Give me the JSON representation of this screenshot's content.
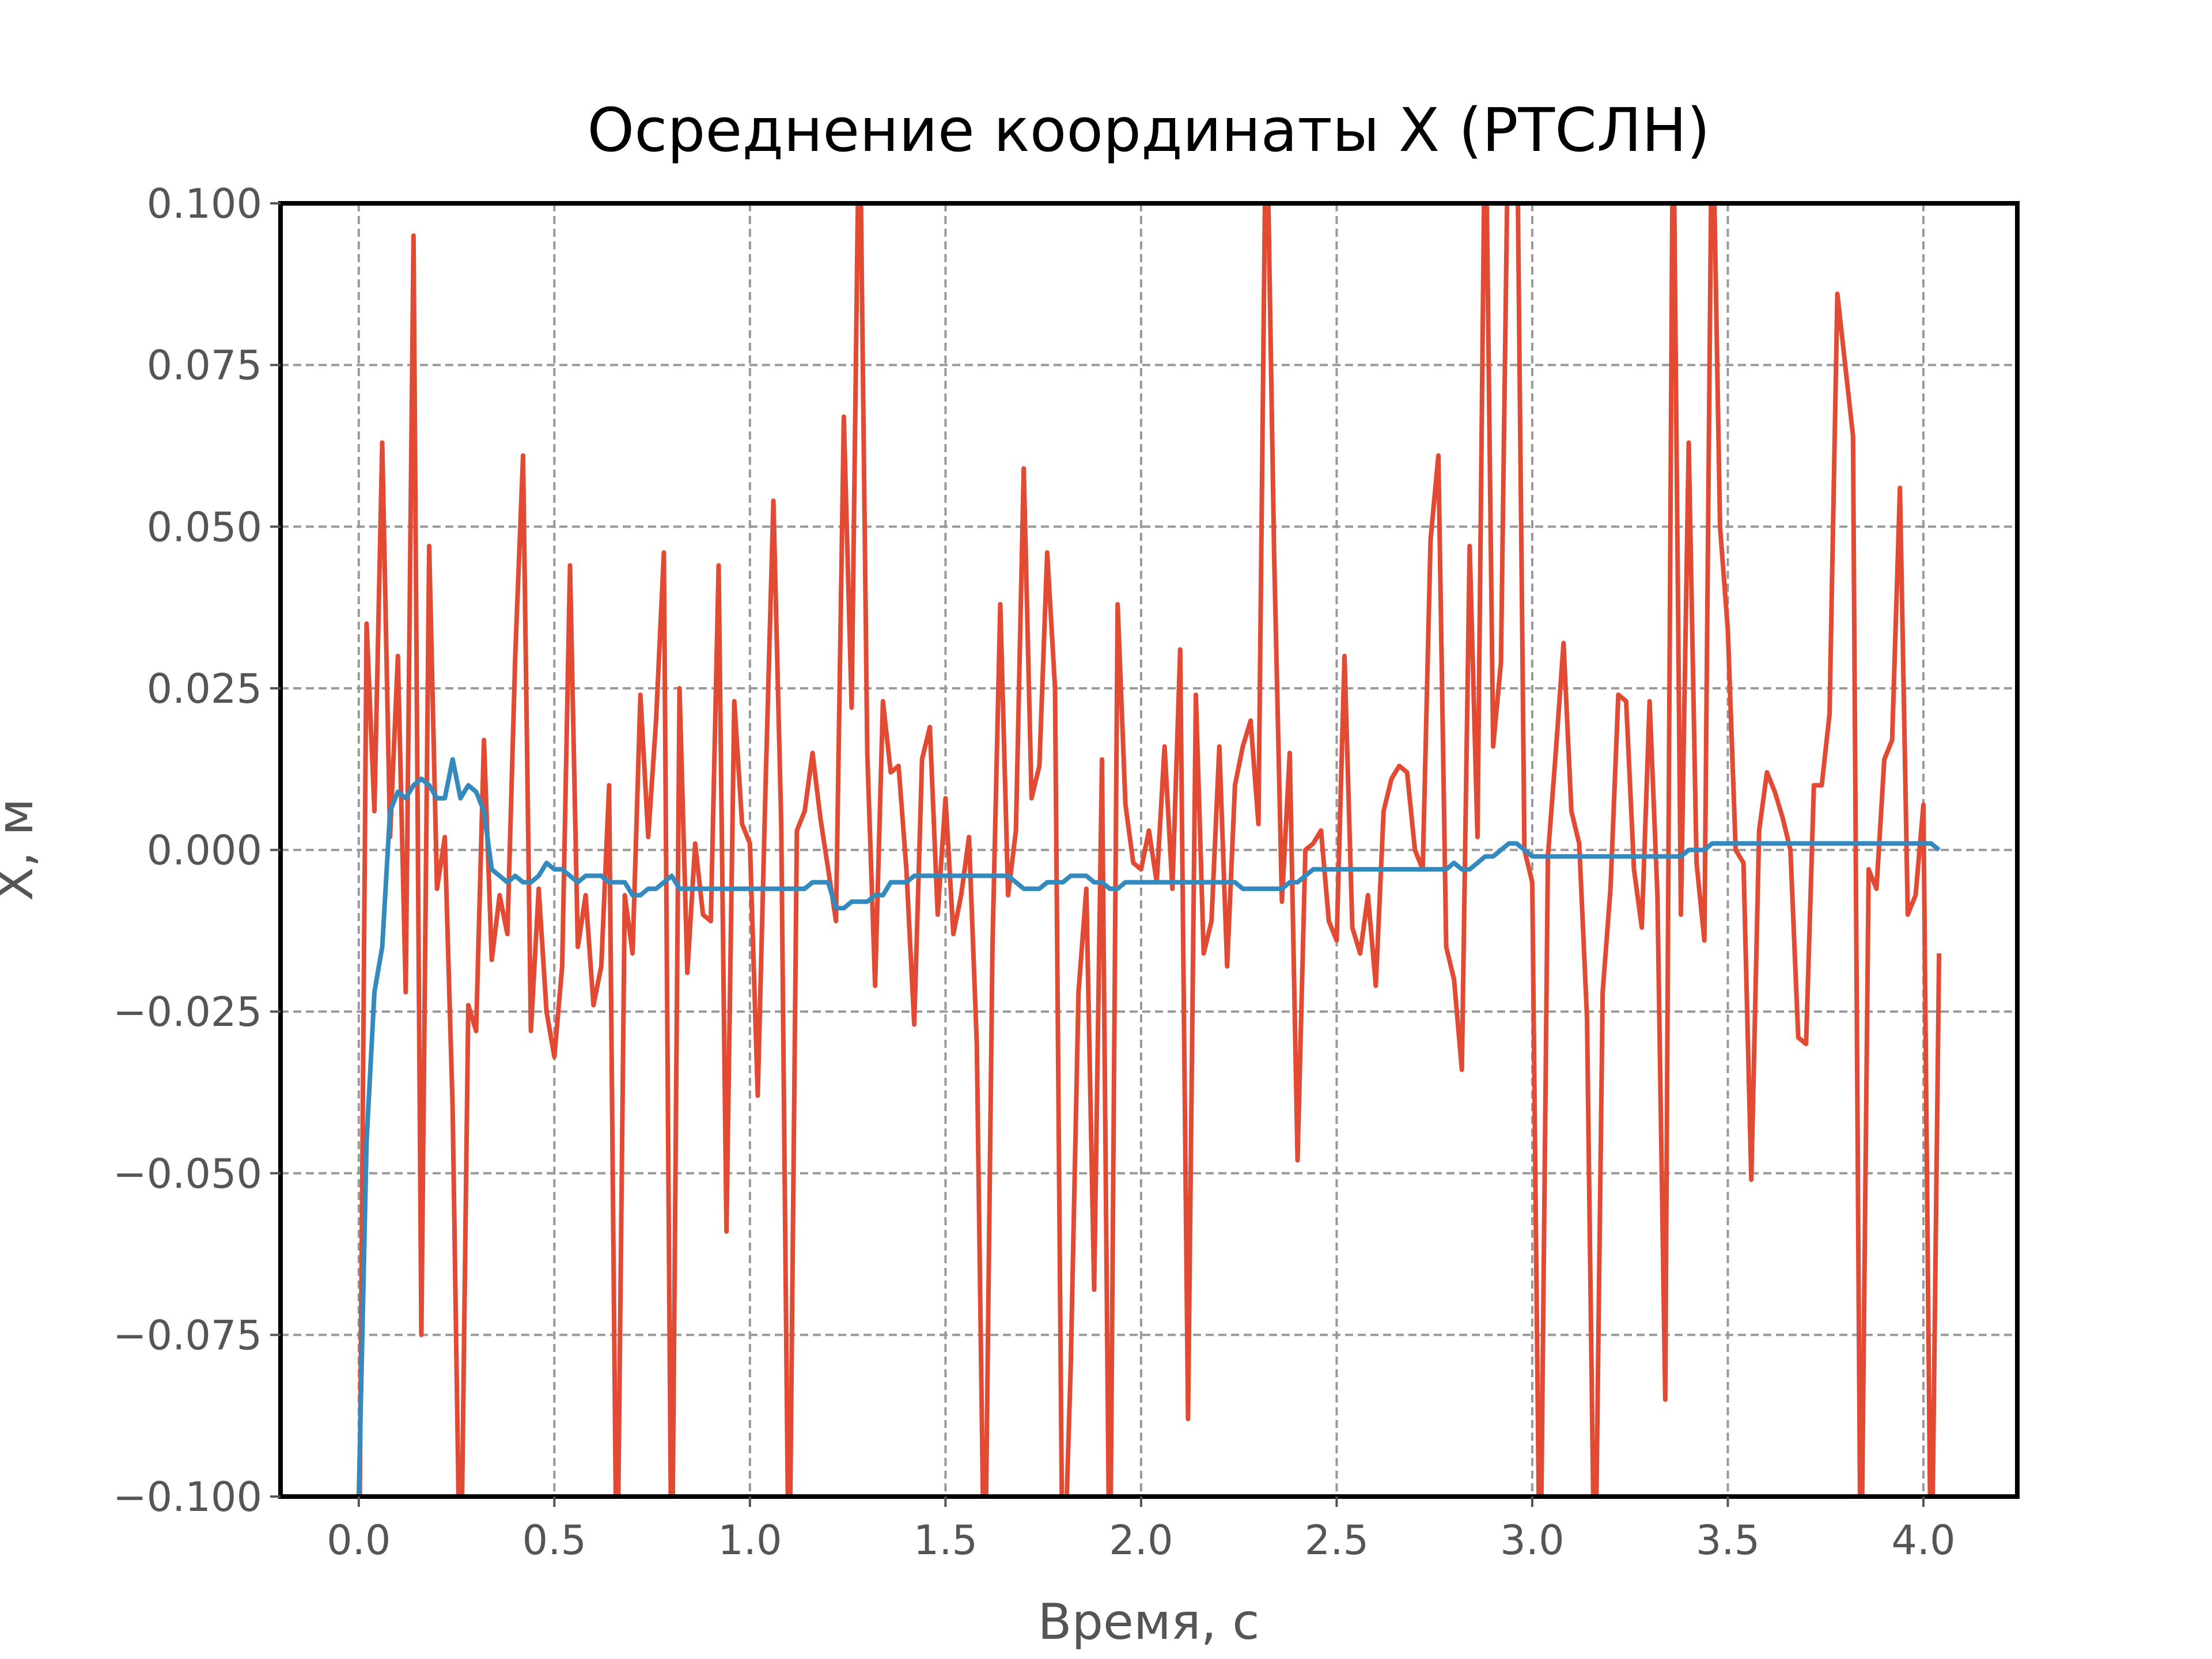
{
  "chart_data": {
    "type": "line",
    "title": "Осреднение координаты X (РТСЛН)",
    "x_label": "Время, с",
    "y_label": "X, м",
    "x": [
      0,
      0.02,
      0.04,
      0.06,
      0.08,
      0.1,
      0.12,
      0.14,
      0.16,
      0.18,
      0.2,
      0.22,
      0.24,
      0.26,
      0.28,
      0.3,
      0.32,
      0.34,
      0.36,
      0.38,
      0.4,
      0.42,
      0.44,
      0.46,
      0.48,
      0.5,
      0.52,
      0.54,
      0.56,
      0.58,
      0.6,
      0.62,
      0.64,
      0.66,
      0.68,
      0.7,
      0.72,
      0.74,
      0.76,
      0.78,
      0.8,
      0.82,
      0.84,
      0.86,
      0.88,
      0.9,
      0.92,
      0.94,
      0.96,
      0.98,
      1,
      1.02,
      1.04,
      1.06,
      1.08,
      1.1,
      1.12,
      1.14,
      1.16,
      1.18,
      1.2,
      1.22,
      1.24,
      1.26,
      1.28,
      1.3,
      1.32,
      1.34,
      1.36,
      1.38,
      1.4,
      1.42,
      1.44,
      1.46,
      1.48,
      1.5,
      1.52,
      1.54,
      1.56,
      1.58,
      1.6,
      1.62,
      1.64,
      1.66,
      1.68,
      1.7,
      1.72,
      1.74,
      1.76,
      1.78,
      1.8,
      1.82,
      1.84,
      1.86,
      1.88,
      1.9,
      1.92,
      1.94,
      1.96,
      1.98,
      2,
      2.02,
      2.04,
      2.06,
      2.08,
      2.1,
      2.12,
      2.14,
      2.16,
      2.18,
      2.2,
      2.22,
      2.24,
      2.26,
      2.28,
      2.3,
      2.32,
      2.34,
      2.36,
      2.38,
      2.4,
      2.42,
      2.44,
      2.46,
      2.48,
      2.5,
      2.52,
      2.54,
      2.56,
      2.58,
      2.6,
      2.62,
      2.64,
      2.66,
      2.68,
      2.7,
      2.72,
      2.74,
      2.76,
      2.78,
      2.8,
      2.82,
      2.84,
      2.86,
      2.88,
      2.9,
      2.92,
      2.94,
      2.96,
      2.98,
      3,
      3.02,
      3.04,
      3.06,
      3.08,
      3.1,
      3.12,
      3.14,
      3.16,
      3.18,
      3.2,
      3.22,
      3.24,
      3.26,
      3.28,
      3.3,
      3.32,
      3.34,
      3.36,
      3.38,
      3.4,
      3.42,
      3.44,
      3.46,
      3.48,
      3.5,
      3.52,
      3.54,
      3.56,
      3.58,
      3.6,
      3.62,
      3.64,
      3.66,
      3.68,
      3.7,
      3.72,
      3.74,
      3.76,
      3.78,
      3.8,
      3.82,
      3.84,
      3.86,
      3.88,
      3.9,
      3.92,
      3.94,
      3.96,
      3.98,
      4,
      4.02,
      4.04
    ],
    "series": [
      {
        "color": "#e24a33",
        "values": [
          -0.12,
          0.035,
          0.006,
          0.063,
          0.002,
          0.03,
          -0.022,
          0.095,
          -0.075,
          0.047,
          -0.006,
          0.002,
          -0.04,
          -0.12,
          -0.024,
          -0.028,
          0.017,
          -0.017,
          -0.007,
          -0.013,
          0.03,
          0.061,
          -0.028,
          -0.006,
          -0.025,
          -0.032,
          -0.018,
          0.044,
          -0.015,
          -0.007,
          -0.024,
          -0.018,
          0.01,
          -0.12,
          -0.007,
          -0.016,
          0.024,
          0.002,
          0.02,
          0.046,
          -0.12,
          0.025,
          -0.019,
          0.001,
          -0.01,
          -0.011,
          0.044,
          -0.059,
          0.023,
          0.004,
          0.001,
          -0.038,
          0.01,
          0.054,
          0.004,
          -0.12,
          0.003,
          0.006,
          0.015,
          0.005,
          -0.003,
          -0.011,
          0.067,
          0.022,
          0.12,
          0.015,
          -0.021,
          0.023,
          0.012,
          0.013,
          -0.003,
          -0.027,
          0.014,
          0.019,
          -0.01,
          0.008,
          -0.013,
          -0.007,
          0.002,
          -0.03,
          -0.12,
          -0.015,
          0.038,
          -0.007,
          0.003,
          0.059,
          0.008,
          0.013,
          0.046,
          0.025,
          -0.12,
          -0.08,
          -0.022,
          -0.006,
          -0.068,
          0.014,
          -0.12,
          0.038,
          0.007,
          -0.002,
          -0.003,
          0.003,
          -0.005,
          0.016,
          -0.006,
          0.031,
          -0.088,
          0.024,
          -0.016,
          -0.011,
          0.016,
          -0.018,
          0.01,
          0.016,
          0.02,
          0.004,
          0.12,
          0.046,
          -0.008,
          0.015,
          -0.048,
          0.0,
          0.001,
          0.003,
          -0.011,
          -0.014,
          0.03,
          -0.012,
          -0.016,
          -0.007,
          -0.021,
          0.006,
          0.011,
          0.013,
          0.012,
          0.0,
          -0.003,
          0.048,
          0.061,
          -0.015,
          -0.02,
          -0.034,
          0.047,
          0.002,
          0.12,
          0.016,
          0.029,
          0.12,
          0.12,
          0.0,
          -0.005,
          -0.12,
          -0.001,
          0.015,
          0.032,
          0.006,
          0.001,
          -0.026,
          -0.12,
          -0.022,
          -0.006,
          0.024,
          0.023,
          -0.003,
          -0.012,
          0.023,
          -0.007,
          -0.085,
          0.12,
          -0.01,
          0.063,
          -0.002,
          -0.014,
          0.12,
          0.05,
          0.034,
          0.0,
          -0.002,
          -0.051,
          0.003,
          0.012,
          0.009,
          0.005,
          0.0,
          -0.029,
          -0.03,
          0.01,
          0.01,
          0.021,
          0.086,
          0.075,
          0.064,
          -0.12,
          -0.003,
          -0.006,
          0.014,
          0.017,
          0.056,
          -0.01,
          -0.007,
          0.007,
          -0.12,
          -0.016
        ]
      },
      {
        "color": "#348abd",
        "values": [
          -0.1,
          -0.045,
          -0.022,
          -0.015,
          0.006,
          0.009,
          0.008,
          0.01,
          0.011,
          0.01,
          0.008,
          0.008,
          0.014,
          0.008,
          0.01,
          0.009,
          0.006,
          -0.003,
          -0.004,
          -0.005,
          -0.004,
          -0.005,
          -0.005,
          -0.004,
          -0.002,
          -0.003,
          -0.003,
          -0.004,
          -0.005,
          -0.004,
          -0.004,
          -0.004,
          -0.005,
          -0.005,
          -0.005,
          -0.007,
          -0.007,
          -0.006,
          -0.006,
          -0.005,
          -0.004,
          -0.006,
          -0.006,
          -0.006,
          -0.006,
          -0.006,
          -0.006,
          -0.006,
          -0.006,
          -0.006,
          -0.006,
          -0.006,
          -0.006,
          -0.006,
          -0.006,
          -0.006,
          -0.006,
          -0.006,
          -0.005,
          -0.005,
          -0.005,
          -0.009,
          -0.009,
          -0.008,
          -0.008,
          -0.008,
          -0.007,
          -0.007,
          -0.005,
          -0.005,
          -0.005,
          -0.004,
          -0.004,
          -0.004,
          -0.004,
          -0.004,
          -0.004,
          -0.004,
          -0.004,
          -0.004,
          -0.004,
          -0.004,
          -0.004,
          -0.004,
          -0.005,
          -0.006,
          -0.006,
          -0.006,
          -0.005,
          -0.005,
          -0.005,
          -0.004,
          -0.004,
          -0.004,
          -0.005,
          -0.005,
          -0.006,
          -0.006,
          -0.005,
          -0.005,
          -0.005,
          -0.005,
          -0.005,
          -0.005,
          -0.005,
          -0.005,
          -0.005,
          -0.005,
          -0.005,
          -0.005,
          -0.005,
          -0.005,
          -0.005,
          -0.006,
          -0.006,
          -0.006,
          -0.006,
          -0.006,
          -0.006,
          -0.005,
          -0.005,
          -0.004,
          -0.003,
          -0.003,
          -0.003,
          -0.003,
          -0.003,
          -0.003,
          -0.003,
          -0.003,
          -0.003,
          -0.003,
          -0.003,
          -0.003,
          -0.003,
          -0.003,
          -0.003,
          -0.003,
          -0.003,
          -0.003,
          -0.002,
          -0.003,
          -0.003,
          -0.002,
          -0.001,
          -0.001,
          0.0,
          0.001,
          0.001,
          0.0,
          -0.001,
          -0.001,
          -0.001,
          -0.001,
          -0.001,
          -0.001,
          -0.001,
          -0.001,
          -0.001,
          -0.001,
          -0.001,
          -0.001,
          -0.001,
          -0.001,
          -0.001,
          -0.001,
          -0.001,
          -0.001,
          -0.001,
          -0.001,
          0.0,
          0.0,
          0.0,
          0.001,
          0.001,
          0.001,
          0.001,
          0.001,
          0.001,
          0.001,
          0.001,
          0.001,
          0.001,
          0.001,
          0.001,
          0.001,
          0.001,
          0.001,
          0.001,
          0.001,
          0.001,
          0.001,
          0.001,
          0.001,
          0.001,
          0.001,
          0.001,
          0.001,
          0.001,
          0.001,
          0.001,
          0.001,
          0.0
        ]
      }
    ],
    "xlim": [
      -0.2,
      4.24
    ],
    "ylim": [
      -0.1,
      0.1
    ],
    "xticks": [
      {
        "value": 0,
        "label": "0.0"
      },
      0.5,
      {
        "value": 1,
        "label": "1.0"
      },
      1.5,
      {
        "value": 2,
        "label": "2.0"
      },
      2.5,
      {
        "value": 3,
        "label": "3.0"
      },
      3.5,
      {
        "value": 4,
        "label": "4.0"
      }
    ],
    "yticks": [
      {
        "value": -0.1,
        "label": "−0.100"
      },
      {
        "value": -0.075,
        "label": "−0.075"
      },
      {
        "value": -0.05,
        "label": "−0.050"
      },
      {
        "value": -0.025,
        "label": "−0.025"
      },
      {
        "value": 0,
        "label": "0.000"
      },
      {
        "value": 0.025,
        "label": "0.025"
      },
      {
        "value": 0.05,
        "label": "0.050"
      },
      {
        "value": 0.075,
        "label": "0.075"
      },
      {
        "value": 0.1,
        "label": "0.100"
      }
    ],
    "grid": true
  }
}
